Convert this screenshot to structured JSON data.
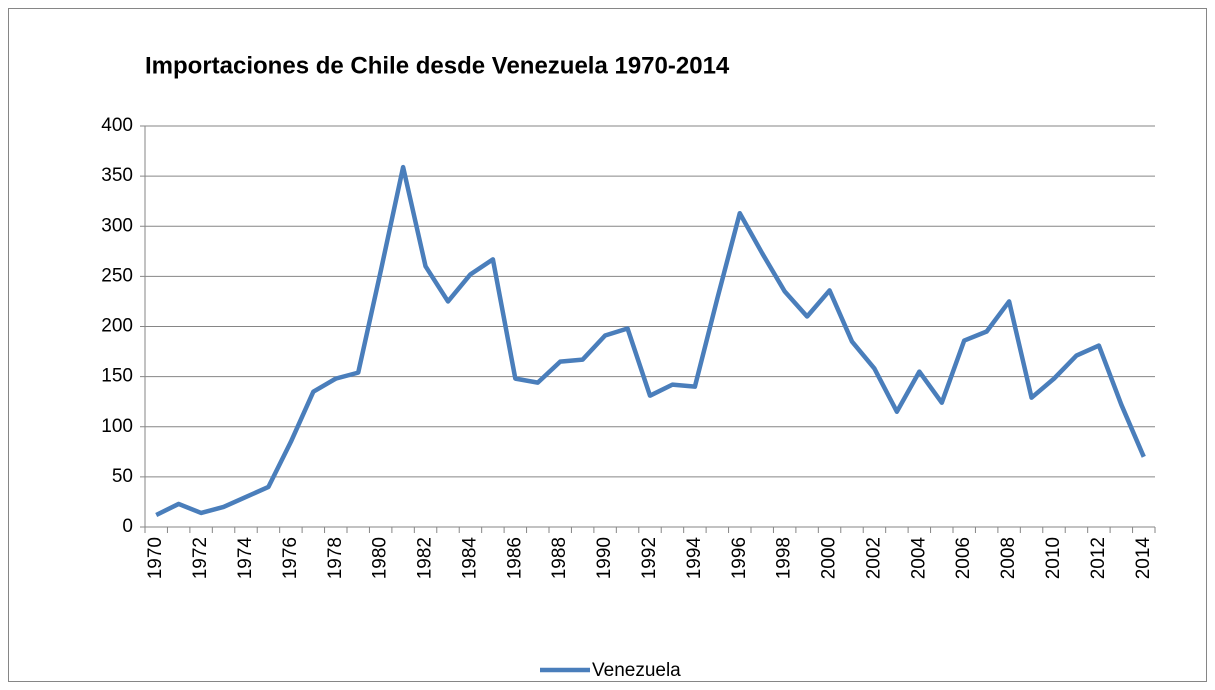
{
  "chart_data": {
    "type": "line",
    "title": "Importaciones de Chile desde Venezuela 1970-2014",
    "categories": [
      "1970",
      null,
      "1972",
      null,
      "1974",
      null,
      "1976",
      null,
      "1978",
      null,
      "1980",
      null,
      "1982",
      null,
      "1984",
      null,
      "1986",
      null,
      "1988",
      null,
      "1990",
      null,
      "1992",
      null,
      "1994",
      null,
      "1996",
      null,
      "1998",
      null,
      "2000",
      null,
      "2002",
      null,
      "2004",
      null,
      "2006",
      null,
      "2008",
      null,
      "2010",
      null,
      "2012",
      null,
      "2014"
    ],
    "series": [
      {
        "name": "Venezuela",
        "color": "#4a7ebb",
        "values": [
          12,
          23,
          14,
          20,
          30,
          40,
          85,
          135,
          148,
          154,
          255,
          359,
          260,
          225,
          252,
          267,
          148,
          144,
          165,
          167,
          191,
          198,
          131,
          142,
          140,
          228,
          313,
          273,
          235,
          210,
          236,
          185,
          158,
          115,
          155,
          124,
          186,
          195,
          225,
          129,
          148,
          171,
          181,
          122,
          70
        ]
      }
    ],
    "ylim": [
      0,
      400
    ],
    "yticks": [
      0,
      50,
      100,
      150,
      200,
      250,
      300,
      350,
      400
    ],
    "grid": true,
    "legend": "bottom"
  }
}
